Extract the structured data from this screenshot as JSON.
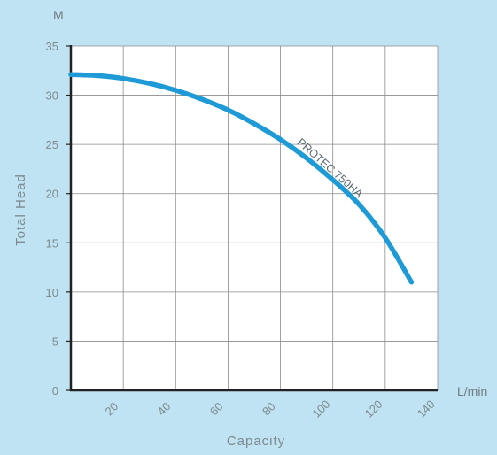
{
  "chart_data": {
    "type": "line",
    "xlabel": "Capacity",
    "ylabel": "Total Head",
    "x_unit": "L/min",
    "y_unit": "M",
    "xlim": [
      0,
      140
    ],
    "ylim": [
      0,
      35
    ],
    "x_ticks": [
      "",
      "20",
      "40",
      "60",
      "80",
      "100",
      "120",
      "140"
    ],
    "y_ticks": [
      "0",
      "5",
      "10",
      "15",
      "20",
      "25",
      "30",
      "35"
    ],
    "grid": true,
    "series": [
      {
        "name": "PROTEC 750HA",
        "x": [
          0,
          10,
          20,
          30,
          40,
          50,
          60,
          70,
          80,
          90,
          100,
          110,
          120,
          130
        ],
        "y": [
          32.1,
          32.0,
          31.7,
          31.2,
          30.5,
          29.6,
          28.5,
          27.1,
          25.5,
          23.6,
          21.4,
          18.9,
          15.5,
          11.0
        ]
      }
    ],
    "colors": {
      "background": "#bfe3f2",
      "plot_area": "#ffffff",
      "grid": "#8c8c8c",
      "axis": "#222222",
      "curve": "#1e9ad6"
    }
  }
}
